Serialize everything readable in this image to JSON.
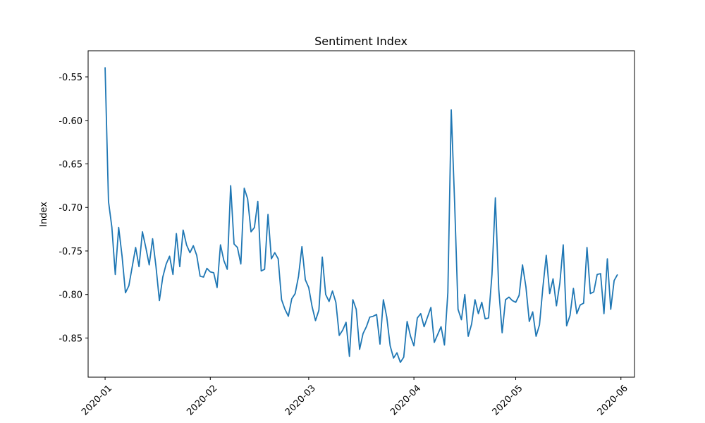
{
  "chart_data": {
    "type": "line",
    "title": "Sentiment Index",
    "xlabel": "",
    "ylabel": "Index",
    "grid": false,
    "legend": "none",
    "xlim": [
      "2019-12-27",
      "2020-06-05"
    ],
    "ylim": [
      -0.895,
      -0.52
    ],
    "x_ticks": [
      "2020-01",
      "2020-02",
      "2020-03",
      "2020-04",
      "2020-05",
      "2020-06"
    ],
    "y_ticks": [
      "-0.55",
      "-0.60",
      "-0.65",
      "-0.70",
      "-0.75",
      "-0.80",
      "-0.85"
    ],
    "colors": {
      "series": "#1f77b4",
      "axes": "#000000"
    },
    "series": [
      {
        "name": "",
        "x_start": "2020-01-01",
        "x_end": "2020-05-31",
        "frequency": "daily",
        "values": [
          -0.539,
          -0.693,
          -0.723,
          -0.777,
          -0.723,
          -0.756,
          -0.798,
          -0.79,
          -0.768,
          -0.746,
          -0.768,
          -0.728,
          -0.746,
          -0.766,
          -0.736,
          -0.768,
          -0.807,
          -0.78,
          -0.765,
          -0.756,
          -0.777,
          -0.73,
          -0.768,
          -0.726,
          -0.743,
          -0.752,
          -0.744,
          -0.755,
          -0.779,
          -0.78,
          -0.77,
          -0.774,
          -0.775,
          -0.792,
          -0.743,
          -0.761,
          -0.771,
          -0.675,
          -0.742,
          -0.746,
          -0.765,
          -0.678,
          -0.69,
          -0.728,
          -0.723,
          -0.693,
          -0.773,
          -0.771,
          -0.708,
          -0.759,
          -0.752,
          -0.759,
          -0.806,
          -0.817,
          -0.825,
          -0.805,
          -0.799,
          -0.779,
          -0.745,
          -0.783,
          -0.792,
          -0.814,
          -0.83,
          -0.818,
          -0.757,
          -0.8,
          -0.808,
          -0.796,
          -0.809,
          -0.847,
          -0.841,
          -0.832,
          -0.871,
          -0.806,
          -0.817,
          -0.863,
          -0.845,
          -0.837,
          -0.826,
          -0.825,
          -0.823,
          -0.857,
          -0.806,
          -0.826,
          -0.859,
          -0.873,
          -0.867,
          -0.878,
          -0.872,
          -0.831,
          -0.848,
          -0.859,
          -0.827,
          -0.822,
          -0.837,
          -0.826,
          -0.815,
          -0.855,
          -0.846,
          -0.837,
          -0.858,
          -0.798,
          -0.588,
          -0.695,
          -0.817,
          -0.829,
          -0.8,
          -0.848,
          -0.834,
          -0.806,
          -0.822,
          -0.809,
          -0.828,
          -0.827,
          -0.777,
          -0.689,
          -0.794,
          -0.844,
          -0.806,
          -0.803,
          -0.807,
          -0.809,
          -0.801,
          -0.766,
          -0.791,
          -0.831,
          -0.82,
          -0.848,
          -0.835,
          -0.792,
          -0.755,
          -0.799,
          -0.782,
          -0.813,
          -0.787,
          -0.743,
          -0.836,
          -0.824,
          -0.793,
          -0.822,
          -0.812,
          -0.81,
          -0.746,
          -0.799,
          -0.797,
          -0.777,
          -0.776,
          -0.822,
          -0.759,
          -0.817,
          -0.784,
          -0.777
        ]
      }
    ]
  }
}
